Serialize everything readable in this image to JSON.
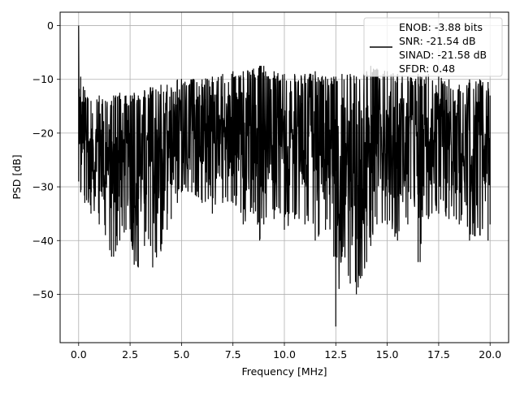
{
  "chart_data": {
    "type": "line",
    "title": "",
    "xlabel": "Frequency [MHz]",
    "ylabel": "PSD [dB]",
    "xlim": [
      -0.9,
      20.9
    ],
    "ylim": [
      -59,
      2.5
    ],
    "xticks": [
      0.0,
      2.5,
      5.0,
      7.5,
      10.0,
      12.5,
      15.0,
      17.5,
      20.0
    ],
    "xtick_labels": [
      "0.0",
      "2.5",
      "5.0",
      "7.5",
      "10.0",
      "12.5",
      "15.0",
      "17.5",
      "20.0"
    ],
    "yticks": [
      0,
      -10,
      -20,
      -30,
      -40,
      -50
    ],
    "ytick_labels": [
      "0",
      "−10",
      "−20",
      "−30",
      "−40",
      "−50"
    ],
    "grid": true,
    "legend_position": "top-right",
    "line_color": "#000000",
    "series": [
      {
        "legend_lines": [
          "ENOB: -3.88 bits",
          "SNR: -21.54 dB",
          "SINAD: -21.58 dB",
          "SFDR: 0.48"
        ],
        "x": [
          0.0,
          0.1,
          0.3,
          0.6,
          1.0,
          1.3,
          1.6,
          1.7,
          1.8,
          2.0,
          2.3,
          2.6,
          2.7,
          2.9,
          3.2,
          3.5,
          3.6,
          4.0,
          4.3,
          4.5,
          4.8,
          5.0,
          5.5,
          6.0,
          6.5,
          7.0,
          7.5,
          8.0,
          8.5,
          8.8,
          9.0,
          9.5,
          10.0,
          10.5,
          11.0,
          11.5,
          12.0,
          12.4,
          12.5,
          12.8,
          13.2,
          13.5,
          14.0,
          14.2,
          14.5,
          15.0,
          15.5,
          16.0,
          16.5,
          16.6,
          17.0,
          17.5,
          18.0,
          18.5,
          19.0,
          19.5,
          19.9,
          20.0
        ],
        "upper": [
          0.0,
          -9.5,
          -12.0,
          -14.0,
          -13.0,
          -14.0,
          -14.0,
          -13.0,
          -13.0,
          -12.5,
          -13.0,
          -13.0,
          -12.5,
          -13.0,
          -12.0,
          -11.5,
          -11.5,
          -11.0,
          -11.0,
          -11.5,
          -10.0,
          -10.0,
          -10.0,
          -10.0,
          -9.5,
          -9.0,
          -8.5,
          -8.5,
          -8.0,
          -7.5,
          -7.5,
          -8.5,
          -9.0,
          -9.0,
          -9.0,
          -8.5,
          -9.5,
          -9.5,
          -9.5,
          -9.0,
          -9.0,
          -9.5,
          -8.5,
          -7.5,
          -8.0,
          -8.5,
          -9.0,
          -9.5,
          -9.0,
          -9.5,
          -9.0,
          -9.5,
          -10.0,
          -11.0,
          -10.0,
          -10.0,
          -10.5,
          -13.0
        ],
        "lower": [
          -29.0,
          -31.0,
          -33.0,
          -35.0,
          -37.0,
          -39.0,
          -43.0,
          -43.0,
          -42.0,
          -40.0,
          -38.0,
          -41.0,
          -44.5,
          -45.0,
          -41.0,
          -41.0,
          -45.0,
          -42.0,
          -38.0,
          -36.0,
          -33.0,
          -31.0,
          -31.0,
          -33.0,
          -35.0,
          -33.0,
          -33.0,
          -37.0,
          -35.0,
          -40.0,
          -37.0,
          -36.0,
          -38.0,
          -36.0,
          -37.0,
          -40.0,
          -38.0,
          -43.0,
          -56.0,
          -43.0,
          -48.0,
          -50.0,
          -44.0,
          -41.0,
          -37.0,
          -37.0,
          -40.0,
          -37.0,
          -44.0,
          -44.0,
          -36.0,
          -35.0,
          -36.0,
          -37.0,
          -40.0,
          -39.0,
          -40.0,
          -37.0
        ]
      }
    ]
  }
}
